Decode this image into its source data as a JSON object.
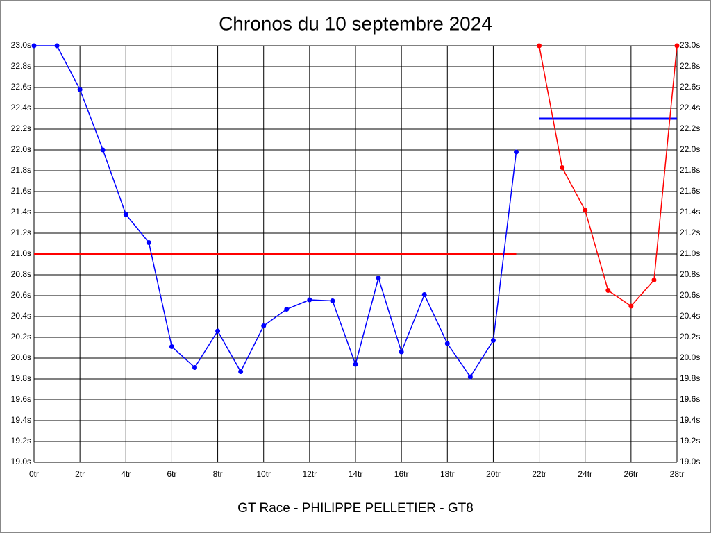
{
  "chart_data": {
    "type": "line",
    "title": "Chronos du 10 septembre 2024",
    "subtitle": "GT Race - PHILIPPE PELLETIER - GT8",
    "grid": true,
    "xlim": [
      0,
      28
    ],
    "ylim": [
      19.0,
      23.0
    ],
    "xticks": [
      {
        "value": 0,
        "label": "0tr"
      },
      {
        "value": 2,
        "label": "2tr"
      },
      {
        "value": 4,
        "label": "4tr"
      },
      {
        "value": 6,
        "label": "6tr"
      },
      {
        "value": 8,
        "label": "8tr"
      },
      {
        "value": 10,
        "label": "10tr"
      },
      {
        "value": 12,
        "label": "12tr"
      },
      {
        "value": 14,
        "label": "14tr"
      },
      {
        "value": 16,
        "label": "16tr"
      },
      {
        "value": 18,
        "label": "18tr"
      },
      {
        "value": 20,
        "label": "20tr"
      },
      {
        "value": 22,
        "label": "22tr"
      },
      {
        "value": 24,
        "label": "24tr"
      },
      {
        "value": 26,
        "label": "26tr"
      },
      {
        "value": 28,
        "label": "28tr"
      }
    ],
    "yticks": [
      {
        "value": 19.0,
        "label": "19.0s"
      },
      {
        "value": 19.2,
        "label": "19.2s"
      },
      {
        "value": 19.4,
        "label": "19.4s"
      },
      {
        "value": 19.6,
        "label": "19.6s"
      },
      {
        "value": 19.8,
        "label": "19.8s"
      },
      {
        "value": 20.0,
        "label": "20.0s"
      },
      {
        "value": 20.2,
        "label": "20.2s"
      },
      {
        "value": 20.4,
        "label": "20.4s"
      },
      {
        "value": 20.6,
        "label": "20.6s"
      },
      {
        "value": 20.8,
        "label": "20.8s"
      },
      {
        "value": 21.0,
        "label": "21.0s"
      },
      {
        "value": 21.2,
        "label": "21.2s"
      },
      {
        "value": 21.4,
        "label": "21.4s"
      },
      {
        "value": 21.6,
        "label": "21.6s"
      },
      {
        "value": 21.8,
        "label": "21.8s"
      },
      {
        "value": 22.0,
        "label": "22.0s"
      },
      {
        "value": 22.2,
        "label": "22.2s"
      },
      {
        "value": 22.4,
        "label": "22.4s"
      },
      {
        "value": 22.6,
        "label": "22.6s"
      },
      {
        "value": 22.8,
        "label": "22.8s"
      },
      {
        "value": 23.0,
        "label": "23.0s"
      }
    ],
    "series": [
      {
        "color": "#0000ff",
        "x": [
          0,
          1,
          2,
          3,
          4,
          5,
          6,
          7,
          8,
          9,
          10,
          11,
          12,
          13,
          14,
          15,
          16,
          17,
          18,
          19,
          20,
          21
        ],
        "values": [
          23.0,
          23.0,
          22.58,
          22.0,
          21.38,
          21.11,
          20.11,
          19.91,
          20.26,
          19.87,
          20.31,
          20.47,
          20.56,
          20.55,
          19.94,
          20.77,
          20.06,
          20.61,
          20.14,
          19.82,
          20.17,
          21.98
        ]
      },
      {
        "color": "#ff0000",
        "x": [
          22,
          23,
          24,
          25,
          26,
          27,
          28
        ],
        "values": [
          23.0,
          21.83,
          21.42,
          20.65,
          20.5,
          20.75,
          23.0
        ]
      }
    ],
    "reference_lines": [
      {
        "value": 21.0,
        "x": [
          0,
          21
        ],
        "color": "#ff0000"
      },
      {
        "value": 22.3,
        "x": [
          22,
          28
        ],
        "color": "#0000ff"
      }
    ]
  }
}
